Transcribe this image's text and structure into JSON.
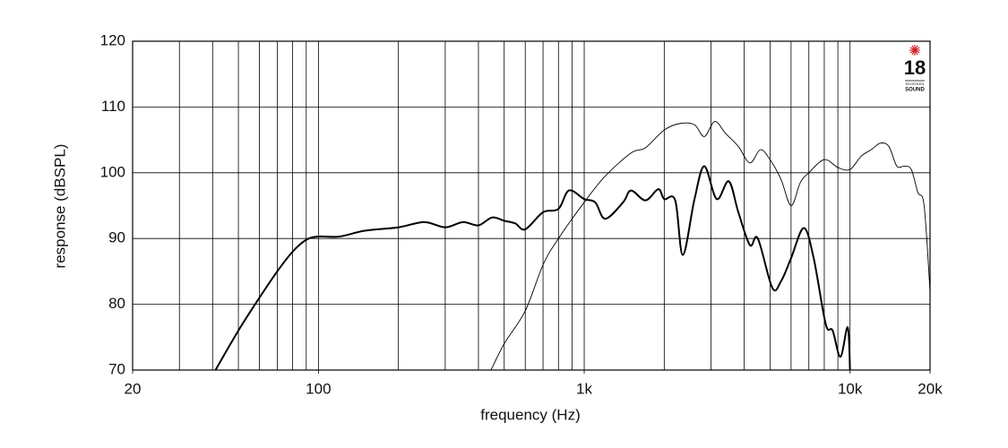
{
  "chart_data": {
    "type": "line",
    "xlabel": "frequency (Hz)",
    "ylabel": "response (dBSPL)",
    "xscale": "log",
    "xlim": [
      20,
      20000
    ],
    "ylim": [
      70,
      120
    ],
    "xticks": [
      20,
      100,
      {
        "value": 1000,
        "label": "1k"
      },
      {
        "value": 10000,
        "label": "10k"
      },
      {
        "value": 20000,
        "label": "20k"
      }
    ],
    "xgrid": [
      30,
      40,
      50,
      60,
      70,
      80,
      90,
      100,
      200,
      300,
      400,
      500,
      600,
      700,
      800,
      900,
      1000,
      2000,
      3000,
      4000,
      5000,
      6000,
      7000,
      8000,
      9000,
      10000
    ],
    "yticks": [
      70,
      80,
      90,
      100,
      110,
      120
    ],
    "grid": true,
    "logo": {
      "number": "18",
      "line1": "EIGHTEEN",
      "line2": "SOUND",
      "color": "#d0202a"
    },
    "series": [
      {
        "color": "#000000",
        "linewidth": 2,
        "x": [
          41,
          50,
          60,
          70,
          80,
          90,
          100,
          120,
          150,
          200,
          250,
          300,
          350,
          400,
          450,
          500,
          550,
          600,
          700,
          800,
          876,
          1000,
          1100,
          1200,
          1400,
          1500,
          1700,
          1900,
          2000,
          2200,
          2350,
          2600,
          2830,
          3150,
          3500,
          3800,
          4200,
          4500,
          5100,
          5500,
          6000,
          6700,
          7300,
          8100,
          8600,
          9200,
          9800,
          10000
        ],
        "values": [
          70,
          76,
          81,
          85,
          88,
          89.8,
          90.3,
          90.3,
          91.2,
          91.7,
          92.5,
          91.7,
          92.5,
          92,
          93.2,
          92.7,
          92.3,
          91.4,
          94,
          94.5,
          97.3,
          96,
          95.5,
          93,
          95.5,
          97.3,
          95.8,
          97.5,
          96,
          95.8,
          87.5,
          96,
          101,
          96,
          98.7,
          94,
          89,
          90,
          82.5,
          83.5,
          87,
          91.6,
          87,
          77,
          76,
          72,
          76.5,
          70
        ]
      },
      {
        "color": "#000000",
        "linewidth": 0.9,
        "x": [
          446,
          500,
          600,
          700,
          800,
          1000,
          1200,
          1500,
          1700,
          2000,
          2300,
          2600,
          2830,
          3100,
          3400,
          3800,
          4200,
          4600,
          5000,
          5500,
          6000,
          6500,
          7000,
          8000,
          9000,
          10000,
          11000,
          12000,
          13000,
          14000,
          15000,
          16000,
          17000,
          18000,
          19000,
          20000
        ],
        "values": [
          70,
          74,
          79,
          86,
          90,
          95.5,
          99.5,
          103,
          103.8,
          106.5,
          107.5,
          107.3,
          105.5,
          107.8,
          106,
          104,
          101.5,
          103.5,
          102,
          99,
          95,
          98.5,
          100,
          102,
          100.8,
          100.5,
          102.5,
          103.5,
          104.5,
          104,
          101,
          101,
          100.5,
          97,
          95,
          82
        ]
      }
    ]
  }
}
